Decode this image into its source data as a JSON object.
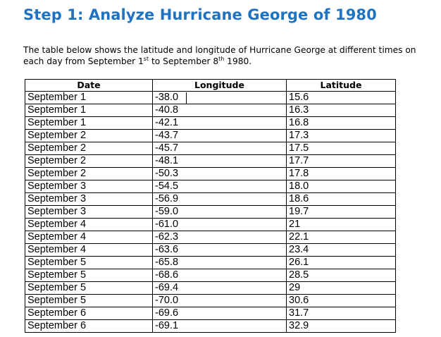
{
  "header": {
    "title": "Step 1: Analyze Hurricane George of 1980"
  },
  "intro": [
    "The table below shows the latitude and longitude of Hurricane George at different times on each day from September 1",
    "st",
    " to September 8",
    "th",
    " 1980."
  ],
  "table": {
    "columns": [
      "Date",
      "Longitude",
      "Latitude"
    ],
    "rows": [
      [
        "September 1",
        "-38.0",
        "15.6"
      ],
      [
        "September 1",
        "-40.8",
        "16.3"
      ],
      [
        "September 1",
        "-42.1",
        "16.8"
      ],
      [
        "September 2",
        "-43.7",
        "17.3"
      ],
      [
        "September 2",
        "-45.7",
        "17.5"
      ],
      [
        "September 2",
        "-48.1",
        "17.7"
      ],
      [
        "September 2",
        "-50.3",
        "17.8"
      ],
      [
        "September 3",
        "-54.5",
        "18.0"
      ],
      [
        "September 3",
        "-56.9",
        "18.6"
      ],
      [
        "September 3",
        "-59.0",
        "19.7"
      ],
      [
        "September 4",
        "-61.0",
        "21"
      ],
      [
        "September 4",
        "-62.3",
        "22.1"
      ],
      [
        "September 4",
        "-63.6",
        "23.4"
      ],
      [
        "September 5",
        "-65.8",
        "26.1"
      ],
      [
        "September 5",
        "-68.6",
        "28.5"
      ],
      [
        "September 5",
        "-69.4",
        "29"
      ],
      [
        "September 5",
        "-70.0",
        "30.6"
      ],
      [
        "September 6",
        "-69.6",
        "31.7"
      ],
      [
        "September 6",
        "-69.1",
        "32.9"
      ]
    ]
  }
}
